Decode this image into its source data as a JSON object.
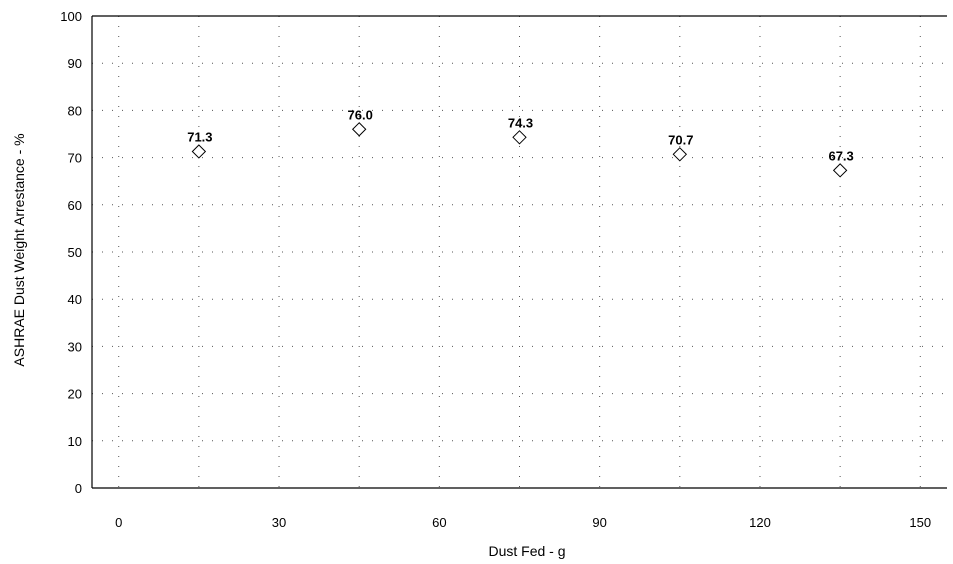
{
  "chart_data": {
    "type": "scatter",
    "title": "",
    "xlabel": "Dust Fed - g",
    "ylabel": "ASHRAE Dust Weight Arrestance - %",
    "xlim": [
      -5,
      155
    ],
    "ylim": [
      0,
      100
    ],
    "x_ticks": [
      0,
      30,
      60,
      90,
      120,
      150
    ],
    "y_ticks": [
      0,
      10,
      20,
      30,
      40,
      50,
      60,
      70,
      80,
      90,
      100
    ],
    "x_gridlines": [
      0,
      15,
      30,
      45,
      60,
      75,
      90,
      105,
      120,
      135,
      150
    ],
    "y_gridlines": [
      10,
      20,
      30,
      40,
      50,
      60,
      70,
      80,
      90
    ],
    "grid": true,
    "marker": "diamond",
    "series": [
      {
        "x": [
          15,
          45,
          75,
          105,
          135
        ],
        "y": [
          71.3,
          76.0,
          74.3,
          70.7,
          67.3
        ],
        "labels": [
          "71.3",
          "76.0",
          "74.3",
          "70.7",
          "67.3"
        ]
      }
    ],
    "colors": {
      "marker_fill": "#ffffff",
      "marker_stroke": "#000000",
      "grid": "#555555",
      "axis": "#000000"
    }
  }
}
